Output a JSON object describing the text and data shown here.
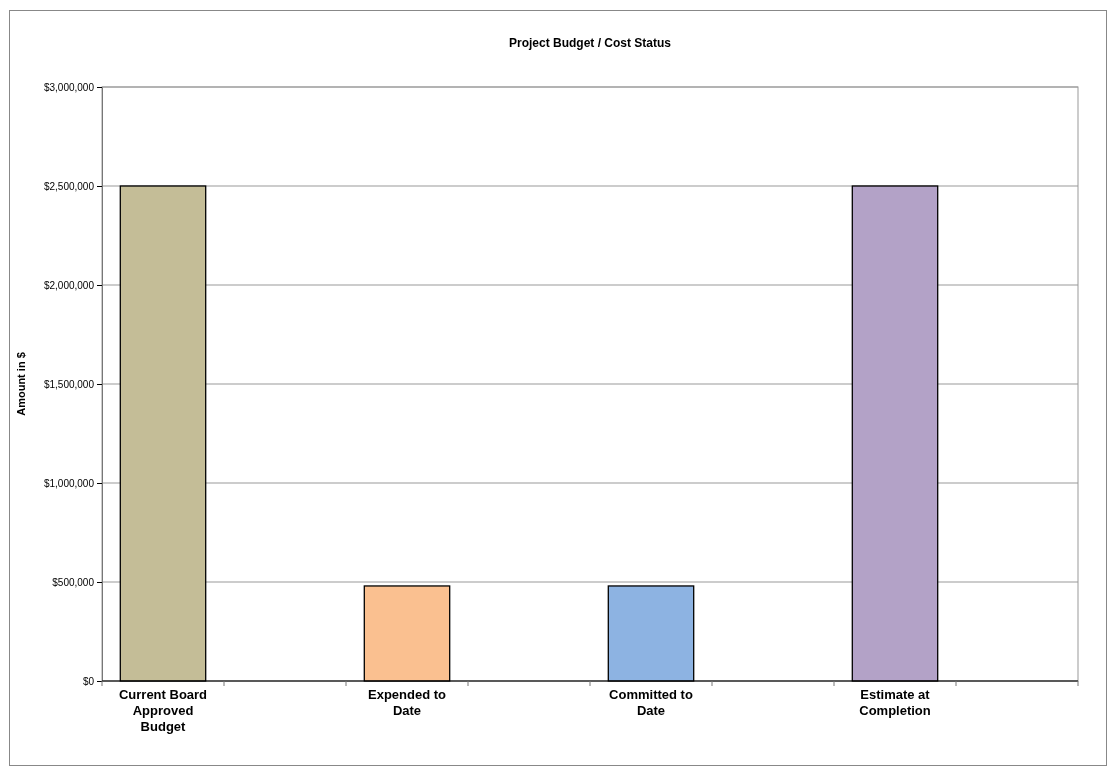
{
  "chart_data": {
    "type": "bar",
    "title": "Project Budget / Cost Status",
    "ylabel": "Amount in $",
    "categories": [
      "Current Board Approved Budget",
      null,
      "Expended to Date",
      null,
      "Committed to Date",
      null,
      "Estimate at Completion",
      null
    ],
    "values": [
      2500000,
      null,
      480000,
      null,
      480000,
      null,
      2500000,
      null
    ],
    "colors": [
      "#c4bd97",
      null,
      "#fac090",
      null,
      "#8db3e2",
      null,
      "#b3a2c7",
      null
    ],
    "ylim": [
      0,
      3000000
    ],
    "yticks": [
      {
        "value": 0,
        "label": "$0"
      },
      {
        "value": 500000,
        "label": "$500,000"
      },
      {
        "value": 1000000,
        "label": "$1,000,000"
      },
      {
        "value": 1500000,
        "label": "$1,500,000"
      },
      {
        "value": 2000000,
        "label": "$2,000,000"
      },
      {
        "value": 2500000,
        "label": "$2,500,000"
      },
      {
        "value": 3000000,
        "label": "$3,000,000"
      }
    ],
    "grid": "y"
  }
}
